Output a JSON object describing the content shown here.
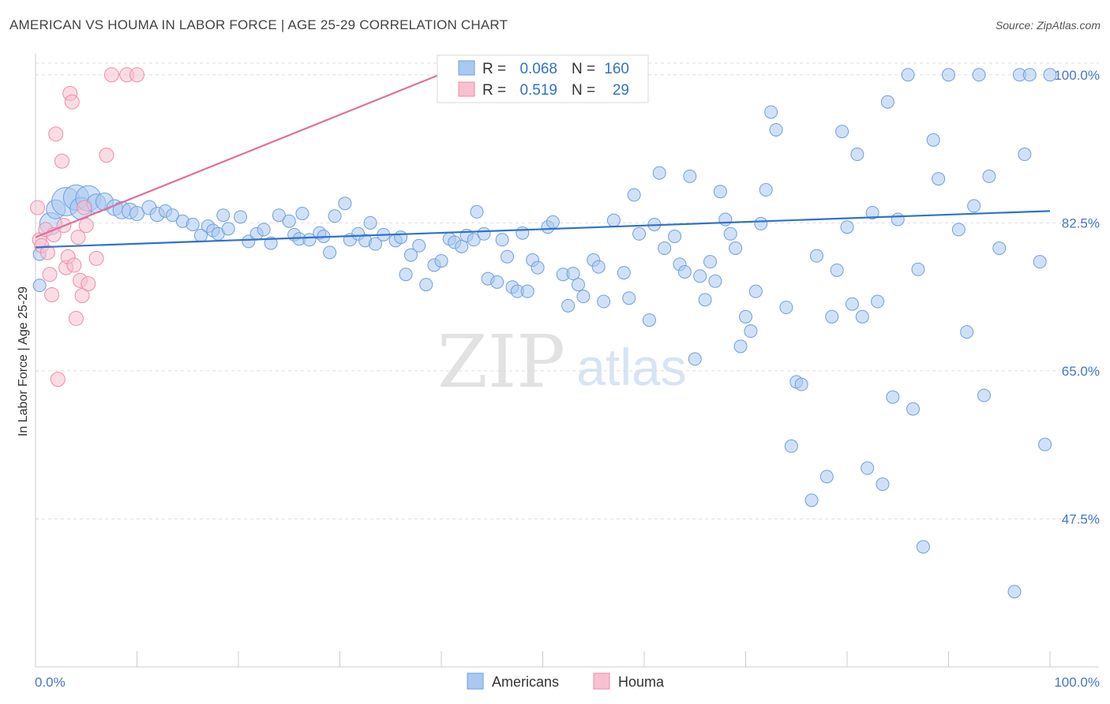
{
  "header": {
    "title": "AMERICAN VS HOUMA IN LABOR FORCE | AGE 25-29 CORRELATION CHART",
    "source": "Source: ZipAtlas.com"
  },
  "watermark": {
    "zip": "ZIP",
    "atlas": "atlas"
  },
  "chart_data": {
    "type": "scatter",
    "title": "AMERICAN VS HOUMA IN LABOR FORCE | AGE 25-29 CORRELATION CHART",
    "xlabel": "",
    "ylabel": "In Labor Force | Age 25-29",
    "xlim": [
      0,
      100
    ],
    "ylim": [
      30,
      102.5
    ],
    "x_tick_labels": [
      "0.0%",
      "100.0%"
    ],
    "y_ticks": [
      47.5,
      65.0,
      82.5,
      100.0
    ],
    "y_tick_labels": [
      "47.5%",
      "65.0%",
      "82.5%",
      "100.0%"
    ],
    "legend": {
      "position": "top-center",
      "entries": [
        {
          "series": "Americans",
          "r_label": "R =",
          "r_value": "0.068",
          "n_label": "N =",
          "n_value": "160"
        },
        {
          "series": "Houma",
          "r_label": "R =",
          "r_value": "0.519",
          "n_label": "N =",
          "n_value": "29"
        }
      ]
    },
    "colors": {
      "americans_fill": "#aac8f0",
      "americans_stroke": "#6f9fdc",
      "americans_line": "#2f72cc",
      "houma_fill": "#f8c0d0",
      "houma_stroke": "#ec8cab",
      "houma_line": "#e0709a",
      "tick_text": "#4477cc",
      "grid": "#dddddd"
    },
    "series": [
      {
        "name": "Americans",
        "trend": {
          "x": [
            0,
            100
          ],
          "y": [
            79.6,
            83.9
          ]
        },
        "points": [
          [
            0.4,
            78.8,
            6
          ],
          [
            0.4,
            75.1,
            6
          ],
          [
            1.5,
            82.4,
            12
          ],
          [
            2.0,
            84.1,
            10
          ],
          [
            3.0,
            85.0,
            16
          ],
          [
            4.0,
            85.5,
            14
          ],
          [
            4.5,
            84.2,
            12
          ],
          [
            5.2,
            85.4,
            14
          ],
          [
            6.0,
            84.8,
            10
          ],
          [
            6.8,
            85.0,
            9
          ],
          [
            7.8,
            84.3,
            8
          ],
          [
            8.5,
            84.0,
            9
          ],
          [
            9.3,
            83.9,
            8
          ],
          [
            10.0,
            83.6,
            7
          ],
          [
            11.2,
            84.3,
            7
          ],
          [
            12.0,
            83.5,
            7
          ],
          [
            12.8,
            83.9,
            6
          ],
          [
            13.5,
            83.4,
            6
          ],
          [
            14.5,
            82.7,
            6
          ],
          [
            15.5,
            82.3,
            6
          ],
          [
            16.3,
            81.0,
            6
          ],
          [
            17.0,
            82.1,
            6
          ],
          [
            17.5,
            81.6,
            6
          ],
          [
            18.0,
            81.2,
            6
          ],
          [
            18.5,
            83.4,
            6
          ],
          [
            19.0,
            81.8,
            6
          ],
          [
            20.2,
            83.2,
            6
          ],
          [
            21.0,
            80.3,
            6
          ],
          [
            21.8,
            81.2,
            6
          ],
          [
            22.5,
            81.7,
            6
          ],
          [
            23.2,
            80.1,
            6
          ],
          [
            24.0,
            83.4,
            6
          ],
          [
            25.0,
            82.7,
            6
          ],
          [
            25.5,
            81.1,
            6
          ],
          [
            26.0,
            80.6,
            6
          ],
          [
            26.3,
            83.6,
            6
          ],
          [
            27.0,
            80.5,
            6
          ],
          [
            28.0,
            81.3,
            6
          ],
          [
            28.4,
            80.9,
            6
          ],
          [
            29.0,
            79.0,
            6
          ],
          [
            29.5,
            83.3,
            6
          ],
          [
            30.5,
            84.8,
            6
          ],
          [
            31.0,
            80.5,
            6
          ],
          [
            31.8,
            81.2,
            6
          ],
          [
            32.5,
            80.4,
            6
          ],
          [
            33.0,
            82.5,
            6
          ],
          [
            33.5,
            80.0,
            6
          ],
          [
            34.3,
            81.1,
            6
          ],
          [
            35.5,
            80.4,
            6
          ],
          [
            36.0,
            80.8,
            6
          ],
          [
            36.5,
            76.4,
            6
          ],
          [
            37.0,
            78.7,
            6
          ],
          [
            37.8,
            79.8,
            6
          ],
          [
            38.5,
            75.2,
            6
          ],
          [
            39.3,
            77.5,
            6
          ],
          [
            40.0,
            78.0,
            6
          ],
          [
            40.8,
            80.6,
            6
          ],
          [
            41.3,
            80.2,
            6
          ],
          [
            42.0,
            79.7,
            6
          ],
          [
            42.5,
            81.0,
            6
          ],
          [
            43.2,
            80.5,
            6
          ],
          [
            43.5,
            83.8,
            6
          ],
          [
            44.2,
            81.2,
            6
          ],
          [
            44.6,
            75.9,
            6
          ],
          [
            45.5,
            75.5,
            6
          ],
          [
            46.0,
            80.5,
            6
          ],
          [
            46.5,
            78.5,
            6
          ],
          [
            47.0,
            74.9,
            6
          ],
          [
            47.5,
            74.4,
            6
          ],
          [
            48.0,
            81.3,
            6
          ],
          [
            48.5,
            74.4,
            6
          ],
          [
            49.0,
            78.1,
            6
          ],
          [
            49.5,
            77.2,
            6
          ],
          [
            50.5,
            82.0,
            6
          ],
          [
            51.0,
            82.6,
            6
          ],
          [
            52.0,
            76.4,
            6
          ],
          [
            52.5,
            72.7,
            6
          ],
          [
            53.0,
            76.5,
            6
          ],
          [
            53.5,
            75.2,
            6
          ],
          [
            54.0,
            73.8,
            6
          ],
          [
            55.0,
            78.1,
            6
          ],
          [
            55.5,
            77.3,
            6
          ],
          [
            56.0,
            73.2,
            6
          ],
          [
            57.0,
            82.8,
            6
          ],
          [
            58.0,
            76.6,
            6
          ],
          [
            58.5,
            73.6,
            6
          ],
          [
            59.0,
            85.8,
            6
          ],
          [
            59.5,
            81.2,
            6
          ],
          [
            60.5,
            71.0,
            6
          ],
          [
            61.0,
            82.3,
            6
          ],
          [
            61.5,
            88.4,
            6
          ],
          [
            62.0,
            79.5,
            6
          ],
          [
            63.0,
            80.9,
            6
          ],
          [
            63.5,
            77.6,
            6
          ],
          [
            64.0,
            76.7,
            6
          ],
          [
            64.5,
            88.0,
            6
          ],
          [
            65.0,
            66.4,
            6
          ],
          [
            65.5,
            76.2,
            6
          ],
          [
            66.0,
            73.4,
            6
          ],
          [
            66.5,
            77.9,
            6
          ],
          [
            67.0,
            75.6,
            6
          ],
          [
            67.5,
            86.2,
            6
          ],
          [
            68.0,
            82.9,
            6
          ],
          [
            68.5,
            81.2,
            6
          ],
          [
            69.0,
            79.5,
            6
          ],
          [
            69.5,
            67.9,
            6
          ],
          [
            70.0,
            71.4,
            6
          ],
          [
            70.5,
            69.7,
            6
          ],
          [
            71.0,
            74.4,
            6
          ],
          [
            71.5,
            82.4,
            6
          ],
          [
            72.0,
            86.4,
            6
          ],
          [
            72.5,
            95.6,
            6
          ],
          [
            73.0,
            93.5,
            6
          ],
          [
            74.0,
            72.5,
            6
          ],
          [
            74.5,
            56.1,
            6
          ],
          [
            75.0,
            63.7,
            6
          ],
          [
            75.5,
            63.4,
            6
          ],
          [
            76.5,
            49.7,
            6
          ],
          [
            77.0,
            78.6,
            6
          ],
          [
            78.0,
            52.5,
            6
          ],
          [
            78.5,
            71.4,
            6
          ],
          [
            79.0,
            76.9,
            6
          ],
          [
            79.5,
            93.3,
            6
          ],
          [
            80.0,
            82.0,
            6
          ],
          [
            80.5,
            72.9,
            6
          ],
          [
            81.0,
            90.6,
            6
          ],
          [
            81.5,
            71.4,
            6
          ],
          [
            82.0,
            53.5,
            6
          ],
          [
            82.5,
            83.7,
            6
          ],
          [
            83.0,
            73.2,
            6
          ],
          [
            83.5,
            51.6,
            6
          ],
          [
            84.0,
            96.8,
            6
          ],
          [
            84.5,
            61.9,
            6
          ],
          [
            85.0,
            82.9,
            6
          ],
          [
            86.0,
            100.0,
            6
          ],
          [
            86.5,
            60.5,
            6
          ],
          [
            87.0,
            77.0,
            6
          ],
          [
            87.5,
            44.2,
            6
          ],
          [
            88.5,
            92.3,
            6
          ],
          [
            89.0,
            87.7,
            6
          ],
          [
            90.0,
            100.0,
            6
          ],
          [
            91.0,
            81.7,
            6
          ],
          [
            91.8,
            69.6,
            6
          ],
          [
            92.5,
            84.5,
            6
          ],
          [
            93.0,
            100.0,
            6
          ],
          [
            93.5,
            62.1,
            6
          ],
          [
            94.0,
            88.0,
            6
          ],
          [
            95.0,
            79.5,
            6
          ],
          [
            96.5,
            38.9,
            6
          ],
          [
            97.0,
            100.0,
            6
          ],
          [
            97.5,
            90.6,
            6
          ],
          [
            98.0,
            100.0,
            6
          ],
          [
            99.0,
            77.9,
            6
          ],
          [
            99.5,
            56.3,
            6
          ],
          [
            100.0,
            100.0,
            6
          ]
        ]
      },
      {
        "name": "Houma",
        "trend": {
          "x": [
            0,
            40
          ],
          "y": [
            80.8,
            100.1
          ]
        },
        "points": [
          [
            0.2,
            84.3,
            7
          ],
          [
            0.4,
            80.5,
            7
          ],
          [
            0.6,
            79.8,
            7
          ],
          [
            1.0,
            81.7,
            7
          ],
          [
            1.2,
            79.0,
            7
          ],
          [
            1.4,
            76.4,
            7
          ],
          [
            1.6,
            74.0,
            7
          ],
          [
            1.8,
            81.1,
            7
          ],
          [
            2.0,
            93.0,
            7
          ],
          [
            2.2,
            64.0,
            7
          ],
          [
            2.6,
            89.8,
            7
          ],
          [
            2.8,
            82.2,
            7
          ],
          [
            3.0,
            77.2,
            7
          ],
          [
            3.2,
            78.5,
            7
          ],
          [
            3.4,
            97.8,
            7
          ],
          [
            3.6,
            96.8,
            7
          ],
          [
            3.8,
            77.5,
            7
          ],
          [
            4.0,
            71.2,
            7
          ],
          [
            4.2,
            80.8,
            7
          ],
          [
            4.4,
            75.7,
            7
          ],
          [
            4.6,
            73.9,
            7
          ],
          [
            4.8,
            84.3,
            7
          ],
          [
            5.0,
            82.2,
            7
          ],
          [
            5.2,
            75.3,
            7
          ],
          [
            6.0,
            78.3,
            7
          ],
          [
            7.0,
            90.5,
            7
          ],
          [
            7.5,
            100.0,
            7
          ],
          [
            9.0,
            100.0,
            7
          ],
          [
            10.0,
            100.0,
            7
          ]
        ]
      }
    ]
  },
  "bottom_legend": [
    "Americans",
    "Houma"
  ]
}
